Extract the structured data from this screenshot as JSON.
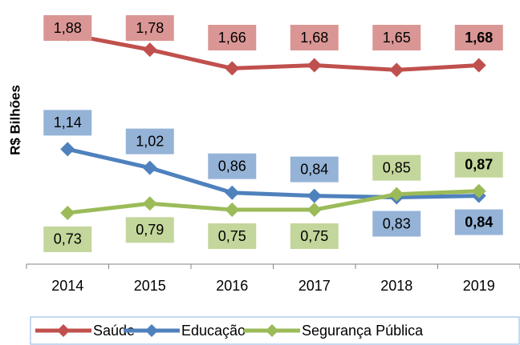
{
  "chart_data": {
    "type": "line",
    "y_label": "R$ Bilhões",
    "categories": [
      "2014",
      "2015",
      "2016",
      "2017",
      "2018",
      "2019"
    ],
    "series": [
      {
        "name": "Saúde",
        "color": "#c0504d",
        "values": [
          1.88,
          1.78,
          1.66,
          1.68,
          1.65,
          1.68
        ],
        "value_labels": [
          "1,88",
          "1,78",
          "1,66",
          "1,68",
          "1,65",
          "1,68"
        ]
      },
      {
        "name": "Educação",
        "color": "#4f81bd",
        "values": [
          1.14,
          1.02,
          0.86,
          0.84,
          0.83,
          0.84
        ],
        "value_labels": [
          "1,14",
          "1,02",
          "0,86",
          "0,84",
          "0,83",
          "0,84"
        ]
      },
      {
        "name": "Segurança Pública",
        "color": "#9bbb59",
        "values": [
          0.73,
          0.79,
          0.75,
          0.75,
          0.85,
          0.87
        ],
        "value_labels": [
          "0,73",
          "0,79",
          "0,75",
          "0,75",
          "0,85",
          "0,87"
        ]
      }
    ],
    "ylim": [
      0.4,
      2.1
    ],
    "legend": "bottom"
  }
}
